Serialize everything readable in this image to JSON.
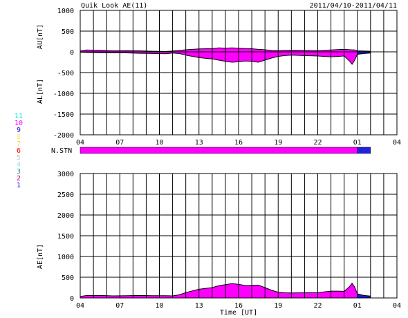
{
  "header": {
    "title": "Quik Look AE(11)",
    "date_range": "2011/04/10-2011/04/11"
  },
  "legend": {
    "items": [
      {
        "label": "11",
        "color": "#00e5e5"
      },
      {
        "label": "10",
        "color": "#ff00ff"
      },
      {
        "label": "9",
        "color": "#2222dd"
      },
      {
        "label": "8",
        "color": "#f5e88a"
      },
      {
        "label": "7",
        "color": "#f2d84a"
      },
      {
        "label": "6",
        "color": "#ff0000"
      },
      {
        "label": "5",
        "color": "#c8c8c8"
      },
      {
        "label": "4",
        "color": "#9fd8d8"
      },
      {
        "label": "3",
        "color": "#00a0a0"
      },
      {
        "label": "2",
        "color": "#cc0066"
      },
      {
        "label": "1",
        "color": "#0000ff"
      }
    ]
  },
  "station_bar": {
    "label": "N.STN",
    "segments": [
      {
        "start_h": 4.0,
        "end_h": 25.0,
        "station_count": 10
      },
      {
        "start_h": 25.0,
        "end_h": 26.0,
        "station_count": 9
      }
    ]
  },
  "chart_data": [
    {
      "type": "area",
      "ylabel_upper": "AU[nT]",
      "ylabel_lower": "AL[nT]",
      "xlim": [
        4,
        28
      ],
      "ylim": [
        -2000,
        1000
      ],
      "yticks": [
        1000,
        500,
        0,
        -500,
        -1000,
        -1500,
        -2000
      ],
      "xtick_labels": [
        "04",
        "07",
        "10",
        "13",
        "16",
        "19",
        "22",
        "01",
        "04"
      ],
      "grid": true,
      "series": [
        {
          "key": "AU",
          "color": "#ff00ff",
          "color_late": "#1a1acc",
          "x": [
            4.0,
            4.5,
            5.5,
            6.5,
            7.5,
            8.5,
            9.5,
            10.5,
            11.0,
            11.5,
            12.0,
            13.0,
            14.0,
            14.5,
            15.0,
            15.5,
            16.0,
            16.5,
            17.0,
            17.5,
            18.0,
            18.5,
            19.0,
            19.5,
            20.0,
            21.0,
            22.0,
            23.0,
            23.5,
            24.0,
            24.5,
            24.8,
            25.0,
            25.5,
            26.0
          ],
          "y": [
            25,
            45,
            40,
            25,
            30,
            25,
            15,
            10,
            20,
            35,
            50,
            70,
            80,
            95,
            90,
            95,
            90,
            80,
            75,
            60,
            50,
            35,
            30,
            35,
            40,
            35,
            30,
            45,
            55,
            60,
            50,
            45,
            25,
            20,
            15
          ]
        },
        {
          "key": "AL",
          "color": "#ff00ff",
          "color_late": "#1a1acc",
          "x": [
            4.0,
            4.5,
            5.5,
            6.5,
            7.5,
            8.5,
            9.5,
            10.5,
            11.0,
            11.5,
            12.0,
            13.0,
            14.0,
            14.5,
            15.0,
            15.5,
            16.0,
            16.5,
            17.0,
            17.5,
            18.0,
            18.5,
            19.0,
            19.5,
            20.0,
            21.0,
            22.0,
            23.0,
            23.5,
            24.0,
            24.4,
            24.6,
            24.8,
            25.0,
            25.5,
            26.0
          ],
          "y": [
            -10,
            -15,
            -20,
            -25,
            -25,
            -35,
            -40,
            -45,
            -30,
            -40,
            -80,
            -140,
            -170,
            -200,
            -230,
            -250,
            -240,
            -220,
            -230,
            -250,
            -200,
            -150,
            -110,
            -90,
            -80,
            -90,
            -100,
            -120,
            -110,
            -100,
            -220,
            -300,
            -200,
            -60,
            -40,
            -30
          ]
        }
      ]
    },
    {
      "type": "area",
      "ylabel": "AE[nT]",
      "xlabel": "Time [UT]",
      "xlim": [
        4,
        28
      ],
      "ylim": [
        0,
        3000
      ],
      "yticks": [
        0,
        500,
        1000,
        1500,
        2000,
        2500,
        3000
      ],
      "xtick_labels": [
        "04",
        "07",
        "10",
        "13",
        "16",
        "19",
        "22",
        "01",
        "04"
      ],
      "grid": true,
      "series": [
        {
          "key": "AE",
          "color": "#ff00ff",
          "color_late": "#1a1acc",
          "x": [
            4.0,
            4.5,
            5.5,
            6.5,
            7.5,
            8.5,
            9.5,
            10.5,
            11.0,
            11.5,
            12.0,
            13.0,
            14.0,
            14.5,
            15.0,
            15.5,
            16.0,
            16.5,
            17.0,
            17.5,
            18.0,
            18.5,
            19.0,
            19.5,
            20.0,
            21.0,
            22.0,
            23.0,
            23.5,
            24.0,
            24.4,
            24.6,
            24.8,
            25.0,
            25.5,
            26.0
          ],
          "y": [
            35,
            60,
            60,
            50,
            55,
            60,
            55,
            55,
            50,
            75,
            130,
            210,
            250,
            295,
            320,
            345,
            330,
            300,
            305,
            310,
            250,
            185,
            140,
            125,
            120,
            125,
            130,
            165,
            165,
            160,
            270,
            355,
            260,
            100,
            60,
            45
          ]
        }
      ]
    }
  ]
}
